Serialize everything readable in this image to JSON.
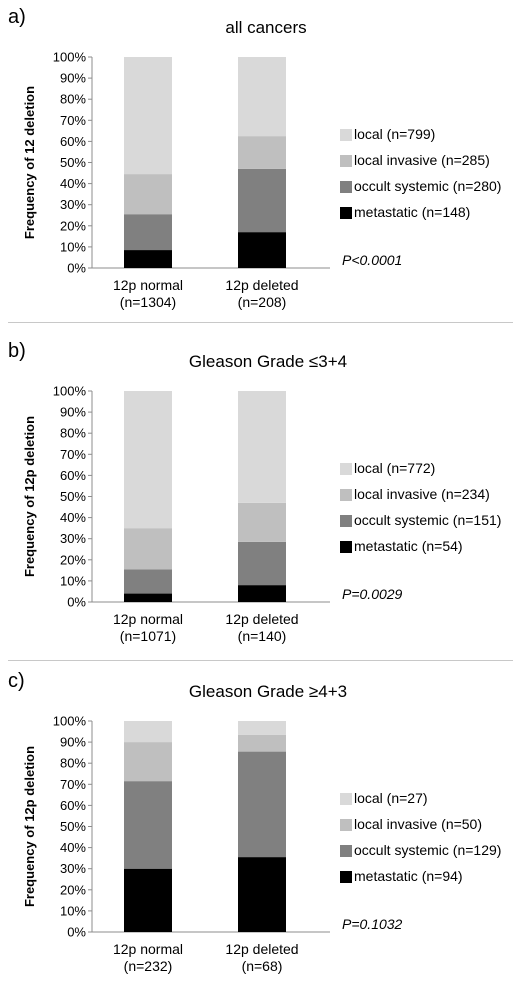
{
  "chart_data": [
    {
      "type": "bar",
      "stacked": true,
      "panel_label": "a)",
      "title": "all cancers",
      "ylabel": "Frequency of 12 deletion",
      "ylim": [
        0,
        100
      ],
      "yticks": [
        "0%",
        "10%",
        "20%",
        "30%",
        "40%",
        "50%",
        "60%",
        "70%",
        "80%",
        "90%",
        "100%"
      ],
      "categories": [
        [
          "12p normal",
          "(n=1304)"
        ],
        [
          "12p deleted",
          "(n=208)"
        ]
      ],
      "series": [
        {
          "name": "metastatic (n=148)",
          "color": "#000000",
          "values": [
            8.5,
            17
          ]
        },
        {
          "name": "occult systemic (n=280)",
          "color": "#808080",
          "values": [
            17,
            30
          ]
        },
        {
          "name": "local invasive (n=285)",
          "color": "#bfbfbf",
          "values": [
            19,
            15.5
          ]
        },
        {
          "name": "local (n=799)",
          "color": "#d9d9d9",
          "values": [
            55.5,
            37.5
          ]
        }
      ],
      "legend_order": [
        "local (n=799)",
        "local invasive (n=285)",
        "occult systemic (n=280)",
        "metastatic (n=148)"
      ],
      "annotation": "P<0.0001",
      "legend_position": "right"
    },
    {
      "type": "bar",
      "stacked": true,
      "panel_label": "b)",
      "title": "Gleason Grade ≤3+4",
      "ylabel": "Frequency of 12p deletion",
      "ylim": [
        0,
        100
      ],
      "yticks": [
        "0%",
        "10%",
        "20%",
        "30%",
        "40%",
        "50%",
        "60%",
        "70%",
        "80%",
        "90%",
        "100%"
      ],
      "categories": [
        [
          "12p normal",
          "(n=1071)"
        ],
        [
          "12p deleted",
          "(n=140)"
        ]
      ],
      "series": [
        {
          "name": "metastatic (n=54)",
          "color": "#000000",
          "values": [
            4,
            8
          ]
        },
        {
          "name": "occult systemic (n=151)",
          "color": "#808080",
          "values": [
            11.5,
            20.5
          ]
        },
        {
          "name": "local invasive (n=234)",
          "color": "#bfbfbf",
          "values": [
            19.5,
            18.5
          ]
        },
        {
          "name": "local (n=772)",
          "color": "#d9d9d9",
          "values": [
            65,
            53
          ]
        }
      ],
      "legend_order": [
        "local (n=772)",
        "local invasive (n=234)",
        "occult systemic (n=151)",
        "metastatic (n=54)"
      ],
      "annotation": "P=0.0029",
      "legend_position": "right"
    },
    {
      "type": "bar",
      "stacked": true,
      "panel_label": "c)",
      "title": "Gleason Grade ≥4+3",
      "ylabel": "Frequency of 12p deletion",
      "ylim": [
        0,
        100
      ],
      "yticks": [
        "0%",
        "10%",
        "20%",
        "30%",
        "40%",
        "50%",
        "60%",
        "70%",
        "80%",
        "90%",
        "100%"
      ],
      "categories": [
        [
          "12p normal",
          "(n=232)"
        ],
        [
          "12p deleted",
          "(n=68)"
        ]
      ],
      "series": [
        {
          "name": "metastatic (n=94)",
          "color": "#000000",
          "values": [
            30,
            35.5
          ]
        },
        {
          "name": "occult systemic (n=129)",
          "color": "#808080",
          "values": [
            41.5,
            50
          ]
        },
        {
          "name": "local invasive (n=50)",
          "color": "#bfbfbf",
          "values": [
            18.5,
            8
          ]
        },
        {
          "name": "local (n=27)",
          "color": "#d9d9d9",
          "values": [
            10,
            6.5
          ]
        }
      ],
      "legend_order": [
        "local (n=27)",
        "local invasive (n=50)",
        "occult systemic (n=129)",
        "metastatic (n=94)"
      ],
      "annotation": "P=0.1032",
      "legend_position": "right"
    }
  ]
}
